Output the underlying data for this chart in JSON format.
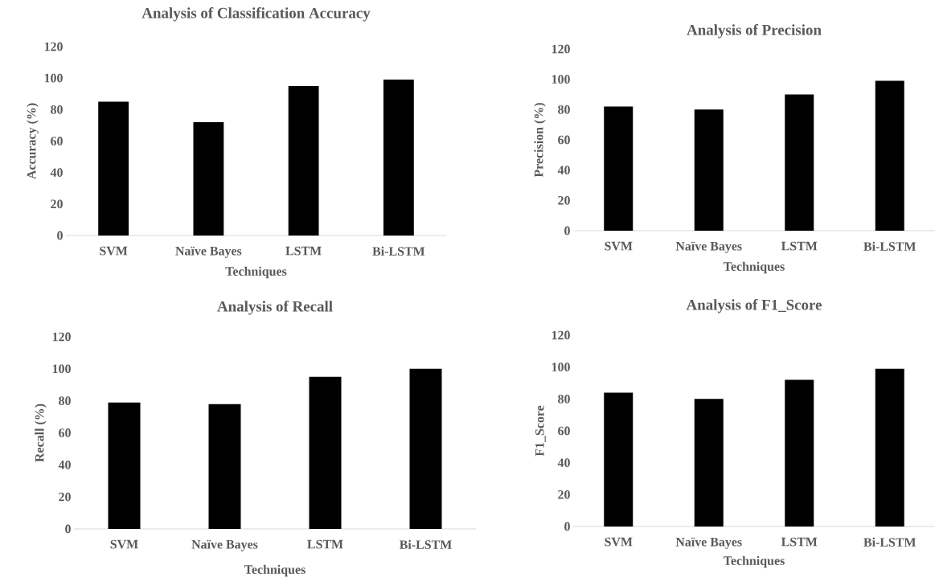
{
  "chart_data": [
    {
      "type": "bar",
      "title": "Analysis of Classification Accuracy",
      "xlabel": "Techniques",
      "ylabel": "Accuracy (%)",
      "categories": [
        "SVM",
        "Naïve Bayes",
        "LSTM",
        "Bi-LSTM"
      ],
      "values": [
        85,
        72,
        95,
        99
      ],
      "color": "#000000",
      "ylim": [
        0,
        120
      ],
      "yticks": [
        0,
        20,
        40,
        60,
        80,
        100,
        120
      ]
    },
    {
      "type": "bar",
      "title": "Analysis of Precision",
      "xlabel": "Techniques",
      "ylabel": "Precision (%)",
      "categories": [
        "SVM",
        "Naïve Bayes",
        "LSTM",
        "Bi-LSTM"
      ],
      "values": [
        82,
        80,
        90,
        99
      ],
      "color": "#000000",
      "ylim": [
        0,
        120
      ],
      "yticks": [
        0,
        20,
        40,
        60,
        80,
        100,
        120
      ]
    },
    {
      "type": "bar",
      "title": "Analysis of Recall",
      "xlabel": "Techniques",
      "ylabel": "Recall (%)",
      "categories": [
        "SVM",
        "Naïve Bayes",
        "LSTM",
        "Bi-LSTM"
      ],
      "values": [
        79,
        78,
        95,
        100
      ],
      "color": "#000000",
      "ylim": [
        0,
        120
      ],
      "yticks": [
        0,
        20,
        40,
        60,
        80,
        100,
        120
      ]
    },
    {
      "type": "bar",
      "title": "Analysis of F1_Score",
      "xlabel": "Techniques",
      "ylabel": "F1_Score",
      "categories": [
        "SVM",
        "Naïve Bayes",
        "LSTM",
        "Bi-LSTM"
      ],
      "values": [
        84,
        80,
        92,
        99
      ],
      "color": "#000000",
      "ylim": [
        0,
        120
      ],
      "yticks": [
        0,
        20,
        40,
        60,
        80,
        100,
        120
      ]
    }
  ]
}
